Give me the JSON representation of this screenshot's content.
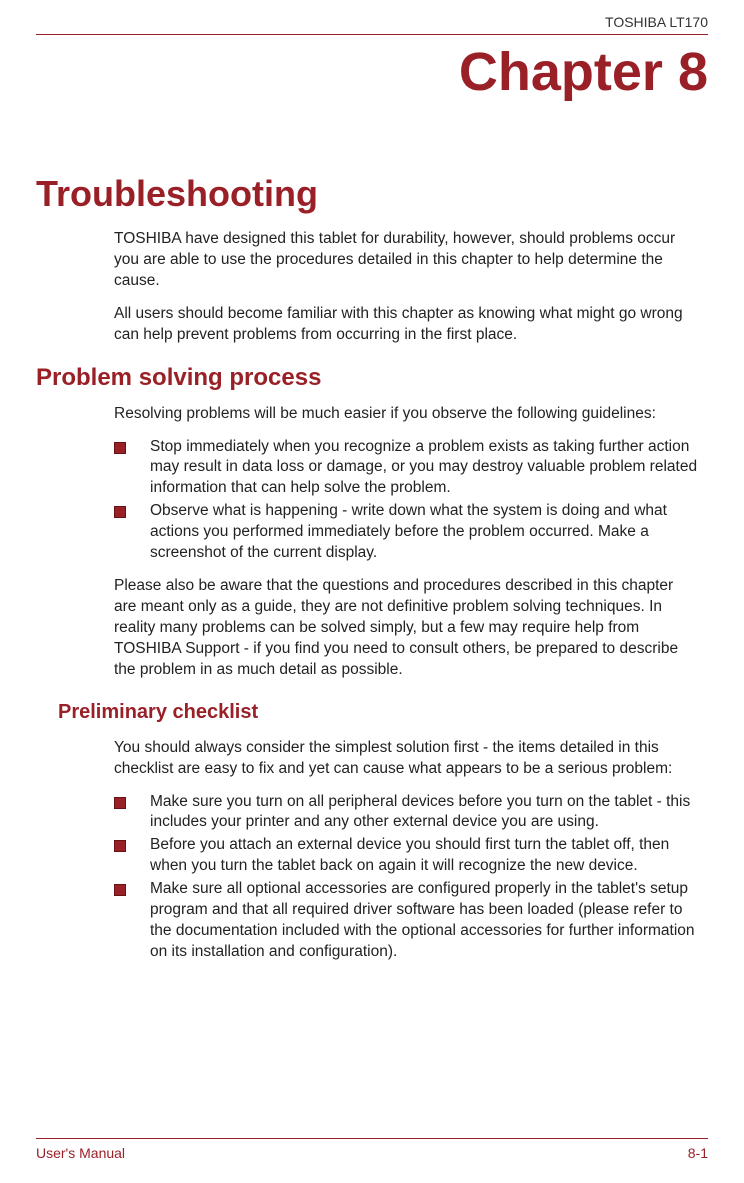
{
  "header": {
    "product_label": "TOSHIBA LT170"
  },
  "chapter": {
    "title": "Chapter 8"
  },
  "main": {
    "title": "Troubleshooting",
    "intro_1": "TOSHIBA have designed this tablet for durability, however, should problems occur you are able to use the procedures detailed in this chapter to help determine the cause.",
    "intro_2": "All users should become familiar with this chapter as knowing what might go wrong can help prevent problems from occurring in the first place."
  },
  "section_problem_solving": {
    "title": "Problem solving process",
    "intro": "Resolving problems will be much easier if you observe the following guidelines:",
    "bullets": [
      "Stop immediately when you recognize a problem exists as taking further action may result in data loss or damage, or you may destroy valuable problem related information that can help solve the problem.",
      "Observe what is happening - write down what the system is doing and what actions you performed immediately before the problem occurred. Make a screenshot of the current display."
    ],
    "followup": "Please also be aware that the questions and procedures described in this chapter are meant only as a guide, they are not definitive problem solving techniques. In reality many problems can be solved simply, but a few may require help from TOSHIBA Support - if you find you need to consult others, be prepared to describe the problem in as much detail as possible."
  },
  "section_preliminary": {
    "title": "Preliminary checklist",
    "intro": "You should always consider the simplest solution first - the items detailed in this checklist are easy to fix and yet can cause what appears to be a serious problem:",
    "bullets": [
      "Make sure you turn on all peripheral devices before you turn on the tablet - this includes your printer and any other external device you are using.",
      "Before you attach an external device you should first turn the tablet off, then when you turn the tablet back on again it will recognize the new device.",
      "Make sure all optional accessories are configured properly in the tablet's setup program and that all required driver software has been loaded (please refer to the documentation included with the optional accessories for further information on its installation and configuration)."
    ]
  },
  "footer": {
    "left": "User's Manual",
    "right": "8-1"
  },
  "colors": {
    "accent": "#9a2028",
    "text": "#222222",
    "background": "#ffffff"
  }
}
